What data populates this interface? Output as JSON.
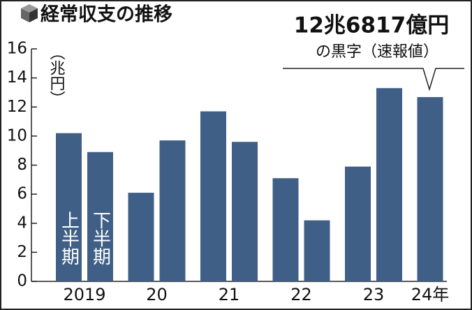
{
  "chart_data": {
    "type": "bar",
    "title": "経常収支の推移",
    "y_label": "（兆円）",
    "annotations": [
      "12兆6817億円",
      "の黒字（速報値）"
    ],
    "categories": [
      "2019",
      "20",
      "21",
      "22",
      "23",
      "24年"
    ],
    "series": [
      {
        "name": "上半期",
        "color": "#3f5f86",
        "values": [
          10.2,
          6.1,
          11.7,
          7.1,
          7.9,
          12.6817
        ]
      },
      {
        "name": "下半期",
        "color": "#3f5f86",
        "values": [
          8.9,
          9.7,
          9.6,
          4.2,
          13.3,
          null
        ]
      }
    ],
    "ylim": [
      0,
      16
    ],
    "yticks": [
      0,
      2,
      4,
      6,
      8,
      10,
      12,
      14,
      16
    ],
    "grid": false
  }
}
